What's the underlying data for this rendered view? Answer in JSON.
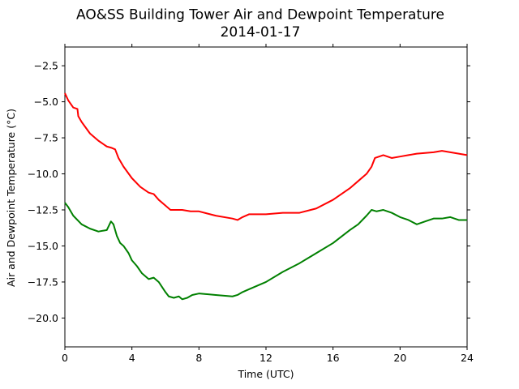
{
  "chart_data": {
    "type": "line",
    "title": "AO&SS Building Tower Air and Dewpoint Temperature",
    "subtitle": "2014-01-17",
    "xlabel": "Time (UTC)",
    "ylabel": "Air and Dewpoint Temperature (°C)",
    "xlim": [
      0,
      24
    ],
    "ylim": [
      -22,
      -1.2
    ],
    "x_ticks": [
      0,
      4,
      8,
      12,
      16,
      20,
      24
    ],
    "x_tick_labels": [
      "0",
      "4",
      "8",
      "12",
      "16",
      "20",
      "24"
    ],
    "y_ticks": [
      -20.0,
      -17.5,
      -15.0,
      -12.5,
      -10.0,
      -7.5,
      -5.0,
      -2.5
    ],
    "y_tick_labels": [
      "−20.0",
      "−17.5",
      "−15.0",
      "−12.5",
      "−10.0",
      "−7.5",
      "−5.0",
      "−2.5"
    ],
    "grid": false,
    "legend": "none",
    "series": [
      {
        "color": "#ff0000",
        "x": [
          0,
          0.2,
          0.5,
          0.75,
          0.8,
          1.0,
          1.25,
          1.5,
          2.0,
          2.5,
          2.8,
          3.0,
          3.2,
          3.5,
          4.0,
          4.5,
          5.0,
          5.3,
          5.6,
          6.0,
          6.3,
          6.6,
          7.0,
          7.5,
          8.0,
          9.0,
          10.0,
          10.3,
          10.6,
          11.0,
          12.0,
          13.0,
          14.0,
          15.0,
          16.0,
          16.5,
          17.0,
          17.5,
          18.0,
          18.3,
          18.5,
          19.0,
          19.5,
          20.0,
          20.5,
          21.0,
          22.0,
          22.5,
          23.0,
          23.5,
          24.0
        ],
        "y": [
          -4.4,
          -4.9,
          -5.4,
          -5.5,
          -6.0,
          -6.4,
          -6.8,
          -7.2,
          -7.7,
          -8.1,
          -8.2,
          -8.3,
          -8.9,
          -9.5,
          -10.3,
          -10.9,
          -11.3,
          -11.4,
          -11.8,
          -12.2,
          -12.5,
          -12.5,
          -12.5,
          -12.6,
          -12.6,
          -12.9,
          -13.1,
          -13.2,
          -13.0,
          -12.8,
          -12.8,
          -12.7,
          -12.7,
          -12.4,
          -11.8,
          -11.4,
          -11.0,
          -10.5,
          -10.0,
          -9.5,
          -8.9,
          -8.7,
          -8.9,
          -8.8,
          -8.7,
          -8.6,
          -8.5,
          -8.4,
          -8.5,
          -8.6,
          -8.7
        ]
      },
      {
        "color": "#008000",
        "x": [
          0,
          0.2,
          0.5,
          1.0,
          1.5,
          2.0,
          2.5,
          2.75,
          2.9,
          3.1,
          3.3,
          3.5,
          3.8,
          4.0,
          4.3,
          4.6,
          5.0,
          5.3,
          5.6,
          6.0,
          6.2,
          6.5,
          6.8,
          7.0,
          7.3,
          7.6,
          8.0,
          9.0,
          10.0,
          10.3,
          10.6,
          11.0,
          12.0,
          13.0,
          14.0,
          15.0,
          16.0,
          17.0,
          17.5,
          18.0,
          18.3,
          18.6,
          19.0,
          19.5,
          20.0,
          20.5,
          21.0,
          21.5,
          22.0,
          22.5,
          23.0,
          23.5,
          24.0
        ],
        "y": [
          -12.0,
          -12.3,
          -12.9,
          -13.5,
          -13.8,
          -14.0,
          -13.9,
          -13.3,
          -13.5,
          -14.3,
          -14.8,
          -15.0,
          -15.5,
          -16.0,
          -16.4,
          -16.9,
          -17.3,
          -17.2,
          -17.5,
          -18.2,
          -18.5,
          -18.6,
          -18.5,
          -18.7,
          -18.6,
          -18.4,
          -18.3,
          -18.4,
          -18.5,
          -18.4,
          -18.2,
          -18.0,
          -17.5,
          -16.8,
          -16.2,
          -15.5,
          -14.8,
          -13.9,
          -13.5,
          -12.9,
          -12.5,
          -12.6,
          -12.5,
          -12.7,
          -13.0,
          -13.2,
          -13.5,
          -13.3,
          -13.1,
          -13.1,
          -13.0,
          -13.2,
          -13.2
        ]
      }
    ]
  }
}
